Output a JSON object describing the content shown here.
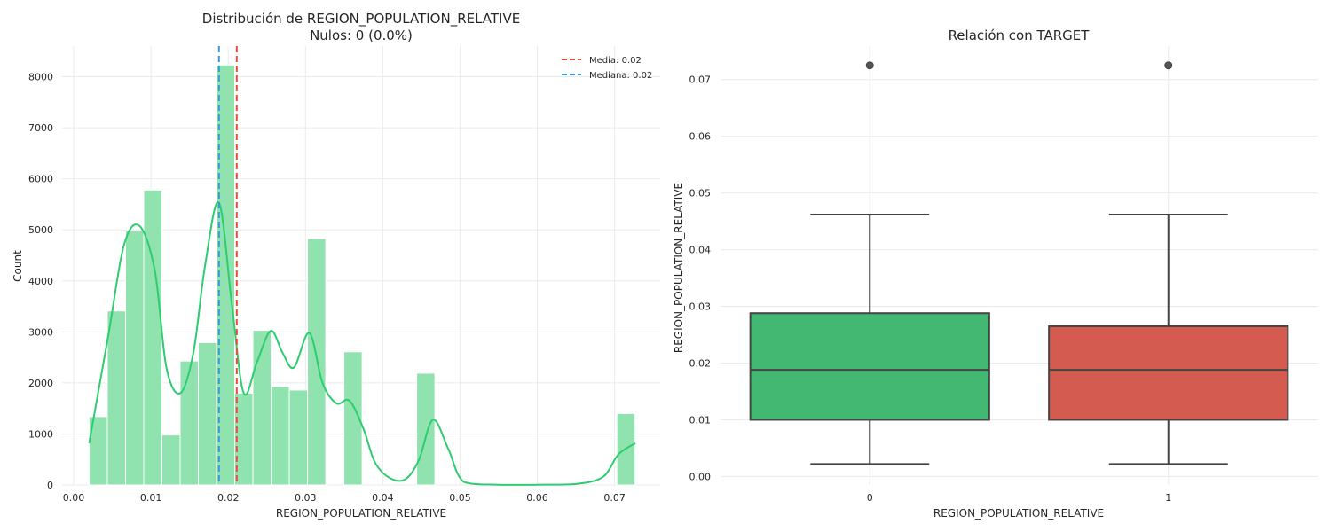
{
  "colors": {
    "hist_fill": "#90E2AE",
    "hist_edge": "#FFFFFF",
    "kde": "#2ECC71",
    "mean": "#E74C3C",
    "median": "#3498DB",
    "box0": "#42B873",
    "box1": "#D35B4F",
    "box_line": "#444444",
    "grid": "#EBEBEB",
    "text": "#262626"
  },
  "chart_data": [
    {
      "type": "bar",
      "subtype": "histogram-with-kde",
      "title": "Distribución de REGION_POPULATION_RELATIVE",
      "subtitle": "Nulos: 0 (0.0%)",
      "xlabel": "REGION_POPULATION_RELATIVE",
      "ylabel": "Count",
      "xlim": [
        -0.0015,
        0.0759
      ],
      "ylim": [
        0,
        8600
      ],
      "xticks": [
        0.0,
        0.01,
        0.02,
        0.03,
        0.04,
        0.05,
        0.06,
        0.07
      ],
      "xtick_labels": [
        "0.00",
        "0.01",
        "0.02",
        "0.03",
        "0.04",
        "0.05",
        "0.06",
        "0.07"
      ],
      "yticks": [
        0,
        1000,
        2000,
        3000,
        4000,
        5000,
        6000,
        7000,
        8000
      ],
      "ytick_labels": [
        "0",
        "1000",
        "2000",
        "3000",
        "4000",
        "5000",
        "6000",
        "7000",
        "8000"
      ],
      "bin_start": 0.002,
      "bin_width": 0.002355,
      "counts": [
        1340,
        3410,
        4980,
        5780,
        980,
        2430,
        2790,
        8230,
        1800,
        3030,
        1930,
        1860,
        4830,
        0,
        2610,
        0,
        0,
        0,
        2190,
        0,
        0,
        0,
        0,
        0,
        0,
        0,
        0,
        0,
        0,
        1400
      ],
      "kde": {
        "x": [
          0.002,
          0.0045,
          0.0065,
          0.0085,
          0.0105,
          0.012,
          0.0138,
          0.0155,
          0.017,
          0.0188,
          0.0205,
          0.022,
          0.0237,
          0.0255,
          0.027,
          0.0285,
          0.0305,
          0.0322,
          0.034,
          0.0357,
          0.0375,
          0.039,
          0.041,
          0.043,
          0.0447,
          0.0465,
          0.0485,
          0.0505,
          0.055,
          0.06,
          0.065,
          0.0685,
          0.0705,
          0.0727
        ],
        "y": [
          820,
          2950,
          4700,
          5080,
          4200,
          2300,
          1800,
          2600,
          4300,
          5530,
          3500,
          1800,
          2400,
          3020,
          2600,
          2300,
          2980,
          2000,
          1600,
          1650,
          1100,
          440,
          130,
          120,
          500,
          1280,
          700,
          60,
          5,
          5,
          20,
          160,
          600,
          820
        ]
      },
      "lines": [
        {
          "name": "mean",
          "label": "Media: 0.02",
          "x": 0.0211
        },
        {
          "name": "median",
          "label": "Mediana: 0.02",
          "x": 0.0188
        }
      ],
      "legend_position": "top-right"
    },
    {
      "type": "box",
      "title": "Relación con TARGET",
      "xlabel": "REGION_POPULATION_RELATIVE",
      "ylabel": "REGION_POPULATION_RELATIVE",
      "ylim": [
        -0.0015,
        0.0759
      ],
      "yticks": [
        0.0,
        0.01,
        0.02,
        0.03,
        0.04,
        0.05,
        0.06,
        0.07
      ],
      "ytick_labels": [
        "0.00",
        "0.01",
        "0.02",
        "0.03",
        "0.04",
        "0.05",
        "0.06",
        "0.07"
      ],
      "categories": [
        "0",
        "1"
      ],
      "boxes": [
        {
          "category": "0",
          "whisker_low": 0.0022,
          "q1": 0.01,
          "median": 0.0188,
          "q3": 0.0288,
          "whisker_high": 0.0462,
          "outliers": [
            0.0725
          ]
        },
        {
          "category": "1",
          "whisker_low": 0.0022,
          "q1": 0.01,
          "median": 0.0188,
          "q3": 0.0265,
          "whisker_high": 0.0462,
          "outliers": [
            0.0725
          ]
        }
      ]
    }
  ]
}
